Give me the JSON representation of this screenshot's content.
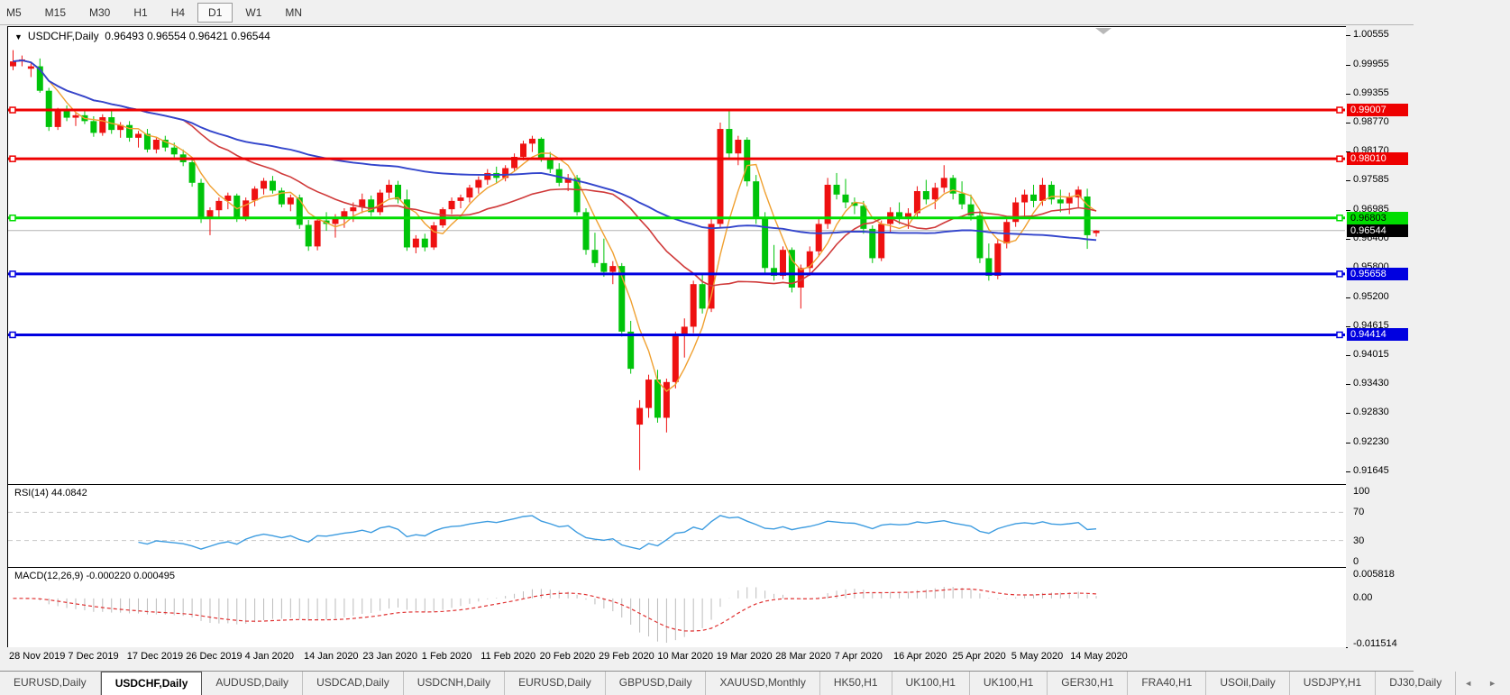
{
  "toolbar": {
    "timeframes": [
      "M5",
      "M15",
      "M30",
      "H1",
      "H4",
      "D1",
      "W1",
      "MN"
    ],
    "active": "D1"
  },
  "title": {
    "dropdown": "▼",
    "symbol": "USDCHF,Daily",
    "ohlc": "0.96493 0.96554 0.96421 0.96544"
  },
  "tabs": {
    "items": [
      "EURUSD,Daily",
      "USDCHF,Daily",
      "AUDUSD,Daily",
      "USDCAD,Daily",
      "USDCNH,Daily",
      "EURUSD,Daily",
      "GBPUSD,Daily",
      "XAUUSD,Monthly",
      "HK50,H1",
      "UK100,H1",
      "UK100,H1",
      "GER30,H1",
      "FRA40,H1",
      "USOil,Daily",
      "USDJPY,H1",
      "DJ30,Daily"
    ],
    "active_index": 1,
    "left_arrow": "◄",
    "right_arrow": "►"
  },
  "indicators": {
    "rsi": {
      "label": "RSI(14)",
      "value": "44.0842",
      "levels": [
        70,
        30
      ],
      "axis": [
        "100",
        "70",
        "30",
        "0"
      ]
    },
    "macd": {
      "label": "MACD(12,26,9)",
      "main_value": "-0.000220",
      "signal_value": "0.000495",
      "axis": [
        "0.005818",
        "0.00",
        "-0.011514"
      ],
      "axis_max": 0.005818,
      "axis_min": -0.011514
    }
  },
  "chart_data": {
    "type": "candlestick",
    "symbol": "USDCHF",
    "timeframe": "Daily",
    "x_axis": {
      "labels": [
        "28 Nov 2019",
        "7 Dec 2019",
        "17 Dec 2019",
        "26 Dec 2019",
        "4 Jan 2020",
        "14 Jan 2020",
        "23 Jan 2020",
        "1 Feb 2020",
        "11 Feb 2020",
        "20 Feb 2020",
        "29 Feb 2020",
        "10 Mar 2020",
        "19 Mar 2020",
        "28 Mar 2020",
        "7 Apr 2020",
        "16 Apr 2020",
        "25 Apr 2020",
        "5 May 2020",
        "14 May 2020"
      ]
    },
    "y_axis": {
      "labels": [
        "1.00555",
        "0.99955",
        "0.99355",
        "0.98770",
        "0.98170",
        "0.97585",
        "0.96985",
        "0.96400",
        "0.95800",
        "0.95200",
        "0.94615",
        "0.94015",
        "0.93430",
        "0.92830",
        "0.92230",
        "0.91645"
      ],
      "max": 1.00702,
      "min": 0.91384
    },
    "current": {
      "price": 0.96544,
      "label": "0.96544",
      "open": 0.96493,
      "high": 0.96554,
      "low": 0.96421,
      "close": 0.96544
    },
    "hlines": [
      {
        "price": 0.99007,
        "label": "0.99007",
        "color": "#ee0000",
        "text_color": "#ffffff"
      },
      {
        "price": 0.9801,
        "label": "0.98010",
        "color": "#ee0000",
        "text_color": "#ffffff"
      },
      {
        "price": 0.96803,
        "label": "0.96803",
        "color": "#00dd00",
        "text_color": "#000000"
      },
      {
        "price": 0.95658,
        "label": "0.95658",
        "color": "#0000e0",
        "text_color": "#ffffff"
      },
      {
        "price": 0.94414,
        "label": "0.94414",
        "color": "#0000e0",
        "text_color": "#ffffff"
      }
    ],
    "colors": {
      "up_candle": "#ee1111",
      "down_candle": "#00c40a",
      "ma_fast": "#f0a030",
      "ma_mid": "#d03a3a",
      "ma_slow": "#3345cc",
      "rsi_line": "#3d9ce0",
      "macd_hist": "#bcbcbc",
      "macd_signal": "#e03030",
      "current_line": "#b4b4b4",
      "shift_marker": "#b8b8b8"
    },
    "moving_averages": [
      {
        "period": 5,
        "key": "ma_fast"
      },
      {
        "period": 20,
        "key": "ma_mid"
      },
      {
        "period": 60,
        "key": "ma_slow"
      }
    ],
    "candles": [
      [
        0.999,
        1.0023,
        0.9982,
        1.0
      ],
      [
        1.0,
        1.0012,
        0.999,
        1.0004
      ],
      [
        0.9985,
        0.9996,
        0.9968,
        0.999
      ],
      [
        0.999,
        1.0006,
        0.9936,
        0.994
      ],
      [
        0.994,
        0.9946,
        0.9858,
        0.9866
      ],
      [
        0.9866,
        0.9905,
        0.986,
        0.9898
      ],
      [
        0.9898,
        0.991,
        0.9878,
        0.9885
      ],
      [
        0.9885,
        0.9896,
        0.9868,
        0.989
      ],
      [
        0.989,
        0.9902,
        0.9872,
        0.9878
      ],
      [
        0.9878,
        0.9888,
        0.9846,
        0.9854
      ],
      [
        0.9854,
        0.9892,
        0.9848,
        0.9886
      ],
      [
        0.9886,
        0.9898,
        0.9852,
        0.986
      ],
      [
        0.986,
        0.9876,
        0.9844,
        0.987
      ],
      [
        0.987,
        0.9878,
        0.9836,
        0.9844
      ],
      [
        0.9844,
        0.9858,
        0.9824,
        0.9852
      ],
      [
        0.9852,
        0.9862,
        0.9814,
        0.982
      ],
      [
        0.982,
        0.9846,
        0.9812,
        0.984
      ],
      [
        0.984,
        0.9848,
        0.9816,
        0.9824
      ],
      [
        0.9824,
        0.9834,
        0.9804,
        0.981
      ],
      [
        0.981,
        0.982,
        0.9786,
        0.9794
      ],
      [
        0.9794,
        0.9804,
        0.9744,
        0.9752
      ],
      [
        0.9752,
        0.976,
        0.967,
        0.9678
      ],
      [
        0.9678,
        0.9702,
        0.9645,
        0.9696
      ],
      [
        0.9696,
        0.9722,
        0.968,
        0.9715
      ],
      [
        0.9715,
        0.9732,
        0.9698,
        0.9726
      ],
      [
        0.9726,
        0.973,
        0.9672,
        0.968
      ],
      [
        0.968,
        0.9722,
        0.9674,
        0.9716
      ],
      [
        0.9716,
        0.9745,
        0.9704,
        0.974
      ],
      [
        0.974,
        0.9762,
        0.9728,
        0.9756
      ],
      [
        0.9756,
        0.9766,
        0.973,
        0.9736
      ],
      [
        0.9736,
        0.9742,
        0.9702,
        0.9708
      ],
      [
        0.9708,
        0.9728,
        0.9694,
        0.9722
      ],
      [
        0.9722,
        0.9728,
        0.9658,
        0.9666
      ],
      [
        0.9666,
        0.9676,
        0.9613,
        0.9622
      ],
      [
        0.9622,
        0.9682,
        0.9614,
        0.9675
      ],
      [
        0.9675,
        0.9692,
        0.9654,
        0.9668
      ],
      [
        0.9668,
        0.9688,
        0.964,
        0.968
      ],
      [
        0.968,
        0.97,
        0.966,
        0.9694
      ],
      [
        0.9694,
        0.9712,
        0.9672,
        0.9702
      ],
      [
        0.9702,
        0.973,
        0.969,
        0.9718
      ],
      [
        0.9718,
        0.9726,
        0.9684,
        0.9692
      ],
      [
        0.9692,
        0.9738,
        0.9686,
        0.9732
      ],
      [
        0.9732,
        0.9758,
        0.972,
        0.9748
      ],
      [
        0.9748,
        0.9756,
        0.971,
        0.9718
      ],
      [
        0.9718,
        0.9738,
        0.9613,
        0.962
      ],
      [
        0.962,
        0.9645,
        0.9608,
        0.9638
      ],
      [
        0.9638,
        0.9648,
        0.9612,
        0.962
      ],
      [
        0.962,
        0.9672,
        0.9615,
        0.9665
      ],
      [
        0.9665,
        0.9702,
        0.966,
        0.9698
      ],
      [
        0.9698,
        0.9722,
        0.9688,
        0.9715
      ],
      [
        0.9715,
        0.9728,
        0.97,
        0.9722
      ],
      [
        0.9722,
        0.9748,
        0.9712,
        0.9742
      ],
      [
        0.9742,
        0.9765,
        0.973,
        0.9758
      ],
      [
        0.9758,
        0.978,
        0.9748,
        0.9772
      ],
      [
        0.9772,
        0.9785,
        0.9752,
        0.9762
      ],
      [
        0.9762,
        0.9788,
        0.9755,
        0.9782
      ],
      [
        0.9782,
        0.9812,
        0.9775,
        0.9805
      ],
      [
        0.9805,
        0.9838,
        0.9798,
        0.9832
      ],
      [
        0.9832,
        0.9848,
        0.9815,
        0.9842
      ],
      [
        0.9842,
        0.9845,
        0.9795,
        0.9802
      ],
      [
        0.9802,
        0.9815,
        0.9772,
        0.978
      ],
      [
        0.978,
        0.9792,
        0.9745,
        0.9752
      ],
      [
        0.9752,
        0.977,
        0.9735,
        0.9762
      ],
      [
        0.9762,
        0.9768,
        0.9685,
        0.9692
      ],
      [
        0.9692,
        0.97,
        0.9605,
        0.9615
      ],
      [
        0.9615,
        0.965,
        0.958,
        0.9588
      ],
      [
        0.9588,
        0.9638,
        0.956,
        0.957
      ],
      [
        0.957,
        0.9592,
        0.9545,
        0.9582
      ],
      [
        0.9582,
        0.9588,
        0.9438,
        0.9448
      ],
      [
        0.9448,
        0.947,
        0.9362,
        0.9372
      ],
      [
        0.9258,
        0.9308,
        0.9165,
        0.9292
      ],
      [
        0.9292,
        0.936,
        0.9272,
        0.935
      ],
      [
        0.935,
        0.937,
        0.9262,
        0.9272
      ],
      [
        0.9272,
        0.9352,
        0.9242,
        0.9345
      ],
      [
        0.9345,
        0.9448,
        0.9332,
        0.944
      ],
      [
        0.944,
        0.9475,
        0.9395,
        0.9458
      ],
      [
        0.9458,
        0.9552,
        0.9445,
        0.9545
      ],
      [
        0.9545,
        0.9565,
        0.9485,
        0.9495
      ],
      [
        0.9495,
        0.9678,
        0.9488,
        0.9668
      ],
      [
        0.9668,
        0.9875,
        0.966,
        0.9862
      ],
      [
        0.9862,
        0.9901,
        0.98,
        0.9812
      ],
      [
        0.9812,
        0.9848,
        0.9788,
        0.984
      ],
      [
        0.984,
        0.9845,
        0.9745,
        0.9755
      ],
      [
        0.9755,
        0.9768,
        0.9668,
        0.9678
      ],
      [
        0.9678,
        0.9692,
        0.9568,
        0.9578
      ],
      [
        0.9578,
        0.9625,
        0.9552,
        0.9562
      ],
      [
        0.9562,
        0.9622,
        0.9555,
        0.9615
      ],
      [
        0.9615,
        0.962,
        0.9528,
        0.9538
      ],
      [
        0.9538,
        0.9585,
        0.9495,
        0.9578
      ],
      [
        0.9578,
        0.9622,
        0.9562,
        0.9612
      ],
      [
        0.9612,
        0.9678,
        0.9602,
        0.9668
      ],
      [
        0.9668,
        0.9762,
        0.9658,
        0.9748
      ],
      [
        0.9748,
        0.9772,
        0.9718,
        0.9728
      ],
      [
        0.9728,
        0.976,
        0.97,
        0.9712
      ],
      [
        0.9712,
        0.9722,
        0.9688,
        0.9705
      ],
      [
        0.9705,
        0.9715,
        0.9648,
        0.9658
      ],
      [
        0.9658,
        0.9665,
        0.9588,
        0.9598
      ],
      [
        0.9598,
        0.9675,
        0.9592,
        0.9668
      ],
      [
        0.9668,
        0.9702,
        0.9652,
        0.9692
      ],
      [
        0.9692,
        0.9712,
        0.9668,
        0.9678
      ],
      [
        0.9678,
        0.97,
        0.9658,
        0.969
      ],
      [
        0.969,
        0.9745,
        0.968,
        0.9735
      ],
      [
        0.9735,
        0.9758,
        0.9708,
        0.9718
      ],
      [
        0.9718,
        0.9752,
        0.9698,
        0.9742
      ],
      [
        0.9742,
        0.9788,
        0.9732,
        0.9762
      ],
      [
        0.9762,
        0.9768,
        0.9718,
        0.973
      ],
      [
        0.973,
        0.9755,
        0.9698,
        0.9708
      ],
      [
        0.9708,
        0.9728,
        0.9675,
        0.9685
      ],
      [
        0.9685,
        0.9695,
        0.9588,
        0.9598
      ],
      [
        0.9598,
        0.9628,
        0.9552,
        0.9562
      ],
      [
        0.9562,
        0.9638,
        0.9555,
        0.9628
      ],
      [
        0.9628,
        0.9682,
        0.9618,
        0.9672
      ],
      [
        0.9672,
        0.9722,
        0.9662,
        0.9712
      ],
      [
        0.9712,
        0.9738,
        0.9682,
        0.9728
      ],
      [
        0.9728,
        0.9748,
        0.9702,
        0.9715
      ],
      [
        0.9715,
        0.9762,
        0.9705,
        0.9748
      ],
      [
        0.9748,
        0.9755,
        0.9708,
        0.9718
      ],
      [
        0.9718,
        0.9738,
        0.9692,
        0.971
      ],
      [
        0.971,
        0.9732,
        0.9688,
        0.9722
      ],
      [
        0.9722,
        0.9745,
        0.9702,
        0.9738
      ],
      [
        0.9724,
        0.974,
        0.9617,
        0.9645
      ],
      [
        0.96493,
        0.96554,
        0.96421,
        0.96544
      ]
    ]
  }
}
